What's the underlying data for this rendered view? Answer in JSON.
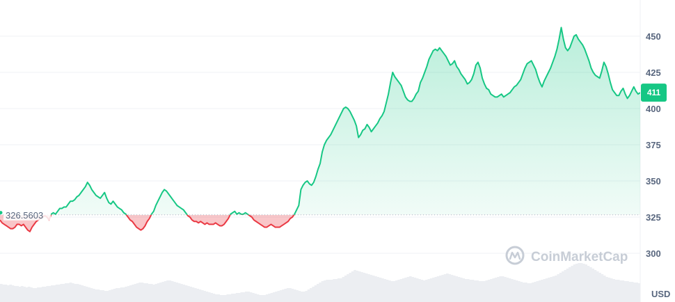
{
  "chart_data": {
    "type": "line",
    "unit": "USD",
    "ylim": [
      280,
      460
    ],
    "yticks": [
      300,
      325,
      350,
      375,
      400,
      425,
      450
    ],
    "baseline": 326.5603,
    "baseline_label": "326.5603",
    "last_value_label": "411",
    "colors": {
      "up": "#16c784",
      "down": "#ea3943",
      "grid": "#eff2f5"
    },
    "series": [
      {
        "values": [
          323,
          321,
          320,
          319,
          318,
          317,
          317,
          318,
          320,
          320,
          319,
          320,
          318,
          316,
          315,
          318,
          320,
          322,
          323,
          324,
          325,
          326,
          325,
          323,
          327,
          328,
          327,
          329,
          331,
          331,
          332,
          332,
          334,
          336,
          336,
          337,
          339,
          340,
          342,
          344,
          346,
          349,
          347,
          344,
          342,
          340,
          339,
          338,
          340,
          342,
          338,
          335,
          334,
          336,
          334,
          332,
          331,
          330,
          328,
          327,
          325,
          323,
          322,
          320,
          318,
          317,
          316,
          317,
          319,
          322,
          324,
          327,
          329,
          333,
          336,
          339,
          342,
          344,
          343,
          341,
          339,
          337,
          335,
          333,
          332,
          331,
          330,
          328,
          326,
          325,
          323,
          322,
          322,
          321,
          322,
          321,
          320,
          321,
          320,
          320,
          320,
          321,
          320,
          319,
          319,
          320,
          322,
          324,
          327,
          328,
          329,
          327,
          328,
          327,
          327,
          328,
          327,
          326,
          325,
          323,
          322,
          321,
          320,
          319,
          318,
          318,
          319,
          320,
          319,
          318,
          318,
          318,
          319,
          320,
          321,
          322,
          324,
          325,
          327,
          330,
          333,
          344,
          347,
          349,
          350,
          348,
          347,
          349,
          353,
          358,
          362,
          370,
          375,
          378,
          380,
          382,
          385,
          388,
          391,
          394,
          397,
          400,
          401,
          400,
          398,
          395,
          392,
          388,
          380,
          382,
          385,
          386,
          389,
          387,
          384,
          386,
          388,
          390,
          393,
          395,
          398,
          404,
          410,
          418,
          425,
          422,
          420,
          418,
          416,
          412,
          408,
          406,
          405,
          405,
          407,
          410,
          412,
          418,
          421,
          425,
          429,
          434,
          437,
          440,
          441,
          440,
          442,
          440,
          438,
          436,
          433,
          430,
          431,
          433,
          429,
          427,
          424,
          422,
          420,
          417,
          418,
          420,
          424,
          430,
          432,
          428,
          421,
          417,
          414,
          413,
          410,
          409,
          408,
          408,
          409,
          410,
          408,
          409,
          410,
          411,
          413,
          415,
          416,
          418,
          420,
          424,
          428,
          431,
          432,
          433,
          430,
          427,
          422,
          418,
          415,
          419,
          422,
          425,
          428,
          432,
          436,
          441,
          448,
          456,
          448,
          442,
          440,
          442,
          446,
          450,
          451,
          448,
          446,
          444,
          441,
          437,
          433,
          428,
          425,
          423,
          422,
          421,
          426,
          432,
          429,
          424,
          418,
          413,
          411,
          409,
          409,
          412,
          414,
          410,
          407,
          409,
          412,
          415,
          412,
          410,
          411
        ]
      }
    ]
  },
  "watermark": {
    "text": "CoinMarketCap",
    "logo": "coinmarketcap-logo-icon"
  },
  "volume": [
    26,
    25,
    25,
    24,
    25,
    24,
    23,
    23,
    22,
    23,
    22,
    21,
    22,
    21,
    20,
    20,
    21,
    21,
    22,
    22,
    23,
    23,
    24,
    24,
    25,
    25,
    26,
    26,
    27,
    27,
    28,
    27,
    26,
    26,
    25,
    24,
    23,
    22,
    21,
    20,
    19,
    18,
    18,
    17,
    17,
    16,
    16,
    17,
    18,
    19,
    20,
    20,
    21,
    21,
    22,
    23,
    24,
    25,
    26,
    27,
    28,
    28,
    27,
    27,
    26,
    26,
    25,
    26,
    27,
    28,
    29,
    30,
    31,
    31,
    30,
    29,
    28,
    27,
    26,
    25,
    24,
    23,
    22,
    21,
    20,
    19,
    18,
    17,
    16,
    15,
    14,
    13,
    12,
    11,
    11,
    10,
    10,
    10,
    11,
    11,
    12,
    12,
    13,
    13,
    14,
    14,
    15,
    15,
    14,
    13,
    12,
    11,
    10,
    10,
    10,
    11,
    12,
    13,
    14,
    15,
    16,
    17,
    18,
    19,
    20,
    20,
    19,
    18,
    17,
    16,
    15,
    15,
    16,
    18,
    20,
    22,
    24,
    26,
    28,
    30,
    31,
    32,
    32,
    32,
    33,
    33,
    34,
    34,
    36,
    38,
    40,
    42,
    44,
    46,
    45,
    44,
    43,
    42,
    41,
    40,
    39,
    38,
    37,
    36,
    35,
    34,
    33,
    32,
    31,
    30,
    30,
    31,
    32,
    33,
    34,
    35,
    36,
    37,
    36,
    35,
    34,
    33,
    32,
    31,
    32,
    33,
    34,
    35,
    36,
    37,
    38,
    39,
    40,
    41,
    40,
    39,
    38,
    37,
    36,
    35,
    34,
    33,
    33,
    32,
    32,
    31,
    31,
    30,
    30,
    30,
    31,
    32,
    33,
    34,
    35,
    36,
    37,
    37,
    36,
    35,
    34,
    33,
    32,
    31,
    30,
    29,
    28,
    28,
    27,
    27,
    28,
    29,
    30,
    31,
    32,
    33,
    34,
    35,
    36,
    37,
    38,
    40,
    42,
    44,
    46,
    48,
    50,
    52,
    54,
    55,
    56,
    56,
    55,
    54,
    52,
    50,
    48,
    46,
    44,
    42,
    40,
    38,
    36,
    35,
    34,
    33,
    32,
    32,
    31,
    31,
    30,
    30,
    29,
    29,
    28,
    28,
    27
  ]
}
